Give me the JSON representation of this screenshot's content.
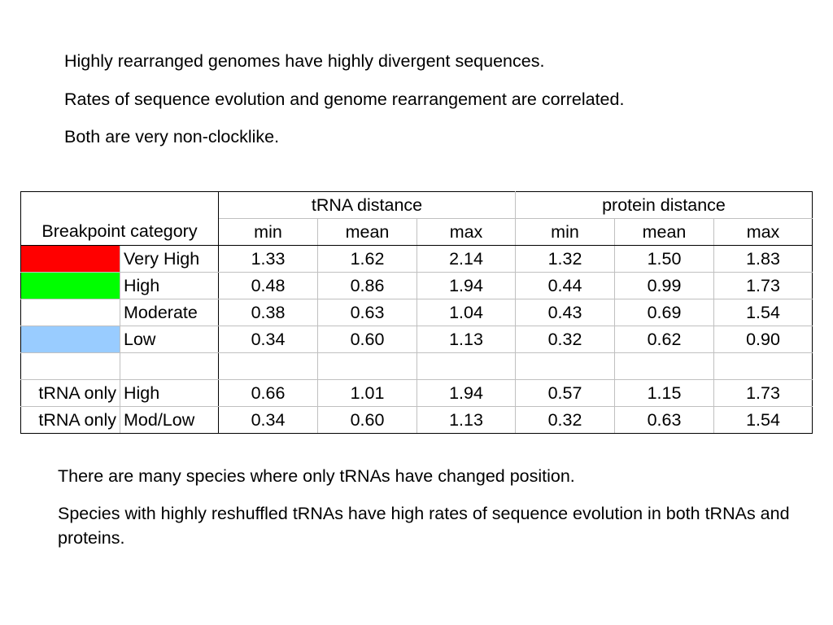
{
  "intro": [
    "Highly rearranged genomes have highly divergent sequences.",
    "Rates of sequence evolution and genome rearrangement are correlated.",
    "Both are very non-clocklike."
  ],
  "table": {
    "category_header": "Breakpoint category",
    "group_headers": [
      "tRNA distance",
      "protein distance"
    ],
    "stat_headers": [
      "min",
      "mean",
      "max",
      "min",
      "mean",
      "max"
    ],
    "rows": [
      {
        "prefix": "",
        "category": "Very High",
        "color": "#ff0000",
        "values": [
          "1.33",
          "1.62",
          "2.14",
          "1.32",
          "1.50",
          "1.83"
        ]
      },
      {
        "prefix": "",
        "category": "High",
        "color": "#00ff00",
        "values": [
          "0.48",
          "0.86",
          "1.94",
          "0.44",
          "0.99",
          "1.73"
        ]
      },
      {
        "prefix": "",
        "category": "Moderate",
        "color": "#ffffff",
        "values": [
          "0.38",
          "0.63",
          "1.04",
          "0.43",
          "0.69",
          "1.54"
        ]
      },
      {
        "prefix": "",
        "category": "Low",
        "color": "#99ccff",
        "values": [
          "0.34",
          "0.60",
          "1.13",
          "0.32",
          "0.62",
          "0.90"
        ]
      },
      {
        "prefix": "tRNA only",
        "category": "High",
        "color": "",
        "values": [
          "0.66",
          "1.01",
          "1.94",
          "0.57",
          "1.15",
          "1.73"
        ]
      },
      {
        "prefix": "tRNA only",
        "category": "Mod/Low",
        "color": "",
        "values": [
          "0.34",
          "0.60",
          "1.13",
          "0.32",
          "0.63",
          "1.54"
        ]
      }
    ]
  },
  "conclusion": [
    "There are many species where only tRNAs have changed position.",
    "Species with highly reshuffled tRNAs have high rates of sequence evolution in both tRNAs and proteins."
  ]
}
